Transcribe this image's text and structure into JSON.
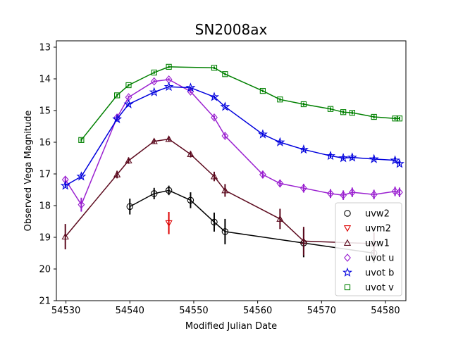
{
  "chart_data": {
    "type": "scatter",
    "title": "SN2008ax",
    "xlabel": "Modified Julian Date",
    "ylabel": "Observed Vega Magnitude",
    "xlim": [
      54528.5,
      54583.2
    ],
    "ylim": [
      21,
      12.8
    ],
    "y_inverted": true,
    "x_ticks": [
      54530,
      54540,
      54550,
      54560,
      54570,
      54580
    ],
    "y_ticks": [
      13,
      14,
      15,
      16,
      17,
      18,
      19,
      20,
      21
    ],
    "grid": false,
    "legend_position": "lower-right",
    "series": [
      {
        "name": "uvw2",
        "color": "#000000",
        "marker": "circle",
        "connected": true,
        "points": [
          {
            "x": 54540.0,
            "y": 18.03,
            "err": 0.25
          },
          {
            "x": 54543.8,
            "y": 17.62,
            "err": 0.18
          },
          {
            "x": 54546.1,
            "y": 17.52,
            "err": 0.15
          },
          {
            "x": 54549.5,
            "y": 17.83,
            "err": 0.25
          },
          {
            "x": 54553.2,
            "y": 18.52,
            "err": 0.3
          },
          {
            "x": 54554.9,
            "y": 18.82,
            "err": 0.4
          },
          {
            "x": 54567.2,
            "y": 19.18,
            "err": 0.45
          },
          {
            "x": 54578.2,
            "y": 19.5,
            "err": 0.3
          }
        ]
      },
      {
        "name": "uvm2",
        "color": "#dd0000",
        "marker": "triangle-down",
        "connected": false,
        "points": [
          {
            "x": 54546.1,
            "y": 18.55,
            "err": 0.35
          }
        ]
      },
      {
        "name": "uvw1",
        "color": "#5c0a1e",
        "marker": "triangle-up",
        "connected": true,
        "points": [
          {
            "x": 54529.9,
            "y": 18.98,
            "err": 0.4
          },
          {
            "x": 54538.0,
            "y": 17.02,
            "err": 0.12
          },
          {
            "x": 54539.8,
            "y": 16.58,
            "err": 0.1
          },
          {
            "x": 54543.8,
            "y": 15.97,
            "err": 0.08
          },
          {
            "x": 54546.1,
            "y": 15.9,
            "err": 0.08
          },
          {
            "x": 54549.5,
            "y": 16.38,
            "err": 0.1
          },
          {
            "x": 54553.2,
            "y": 17.08,
            "err": 0.15
          },
          {
            "x": 54554.9,
            "y": 17.52,
            "err": 0.2
          },
          {
            "x": 54563.5,
            "y": 18.42,
            "err": 0.32
          },
          {
            "x": 54567.2,
            "y": 19.12,
            "err": 0.45
          },
          {
            "x": 54578.2,
            "y": 19.2,
            "err": 0.35
          }
        ]
      },
      {
        "name": "uvot u",
        "color": "#9a20d0",
        "marker": "diamond",
        "connected": true,
        "points": [
          {
            "x": 54529.9,
            "y": 17.18,
            "err": 0.08
          },
          {
            "x": 54532.4,
            "y": 17.97,
            "err": 0.22
          },
          {
            "x": 54538.0,
            "y": 15.22,
            "err": 0.06
          },
          {
            "x": 54539.8,
            "y": 14.58,
            "err": 0.05
          },
          {
            "x": 54543.8,
            "y": 14.08,
            "err": 0.04
          },
          {
            "x": 54546.1,
            "y": 14.02,
            "err": 0.04
          },
          {
            "x": 54549.5,
            "y": 14.4,
            "err": 0.05
          },
          {
            "x": 54553.2,
            "y": 15.22,
            "err": 0.06
          },
          {
            "x": 54554.9,
            "y": 15.8,
            "err": 0.07
          },
          {
            "x": 54560.8,
            "y": 17.02,
            "err": 0.12
          },
          {
            "x": 54563.5,
            "y": 17.3,
            "err": 0.12
          },
          {
            "x": 54567.2,
            "y": 17.45,
            "err": 0.14
          },
          {
            "x": 54571.4,
            "y": 17.62,
            "err": 0.14
          },
          {
            "x": 54573.4,
            "y": 17.67,
            "err": 0.15
          },
          {
            "x": 54574.8,
            "y": 17.58,
            "err": 0.15
          },
          {
            "x": 54578.2,
            "y": 17.65,
            "err": 0.15
          },
          {
            "x": 54581.5,
            "y": 17.55,
            "err": 0.15
          },
          {
            "x": 54582.2,
            "y": 17.58,
            "err": 0.15
          }
        ]
      },
      {
        "name": "uvot b",
        "color": "#0000dd",
        "marker": "star",
        "connected": true,
        "points": [
          {
            "x": 54529.9,
            "y": 17.37,
            "err": 0.06
          },
          {
            "x": 54532.4,
            "y": 17.08,
            "err": 0.06
          },
          {
            "x": 54538.0,
            "y": 15.27,
            "err": 0.04
          },
          {
            "x": 54539.8,
            "y": 14.8,
            "err": 0.04
          },
          {
            "x": 54543.8,
            "y": 14.42,
            "err": 0.03
          },
          {
            "x": 54546.1,
            "y": 14.25,
            "err": 0.03
          },
          {
            "x": 54549.5,
            "y": 14.28,
            "err": 0.03
          },
          {
            "x": 54553.2,
            "y": 14.57,
            "err": 0.04
          },
          {
            "x": 54554.9,
            "y": 14.88,
            "err": 0.04
          },
          {
            "x": 54560.8,
            "y": 15.75,
            "err": 0.05
          },
          {
            "x": 54563.5,
            "y": 16.0,
            "err": 0.05
          },
          {
            "x": 54567.2,
            "y": 16.23,
            "err": 0.06
          },
          {
            "x": 54571.4,
            "y": 16.43,
            "err": 0.06
          },
          {
            "x": 54573.4,
            "y": 16.5,
            "err": 0.06
          },
          {
            "x": 54574.8,
            "y": 16.48,
            "err": 0.06
          },
          {
            "x": 54578.2,
            "y": 16.53,
            "err": 0.06
          },
          {
            "x": 54581.5,
            "y": 16.57,
            "err": 0.07
          },
          {
            "x": 54582.2,
            "y": 16.68,
            "err": 0.07
          }
        ]
      },
      {
        "name": "uvot v",
        "color": "#008000",
        "marker": "square",
        "connected": true,
        "points": [
          {
            "x": 54532.4,
            "y": 15.93,
            "err": 0.06
          },
          {
            "x": 54538.0,
            "y": 14.52,
            "err": 0.05
          },
          {
            "x": 54539.8,
            "y": 14.2,
            "err": 0.04
          },
          {
            "x": 54543.8,
            "y": 13.8,
            "err": 0.04
          },
          {
            "x": 54546.1,
            "y": 13.62,
            "err": 0.04
          },
          {
            "x": 54553.2,
            "y": 13.65,
            "err": 0.04
          },
          {
            "x": 54554.9,
            "y": 13.85,
            "err": 0.04
          },
          {
            "x": 54560.8,
            "y": 14.38,
            "err": 0.04
          },
          {
            "x": 54563.5,
            "y": 14.65,
            "err": 0.04
          },
          {
            "x": 54567.2,
            "y": 14.8,
            "err": 0.05
          },
          {
            "x": 54571.4,
            "y": 14.95,
            "err": 0.05
          },
          {
            "x": 54573.4,
            "y": 15.05,
            "err": 0.05
          },
          {
            "x": 54574.8,
            "y": 15.07,
            "err": 0.05
          },
          {
            "x": 54578.2,
            "y": 15.2,
            "err": 0.05
          },
          {
            "x": 54581.5,
            "y": 15.25,
            "err": 0.05
          },
          {
            "x": 54582.2,
            "y": 15.25,
            "err": 0.05
          }
        ]
      }
    ]
  }
}
